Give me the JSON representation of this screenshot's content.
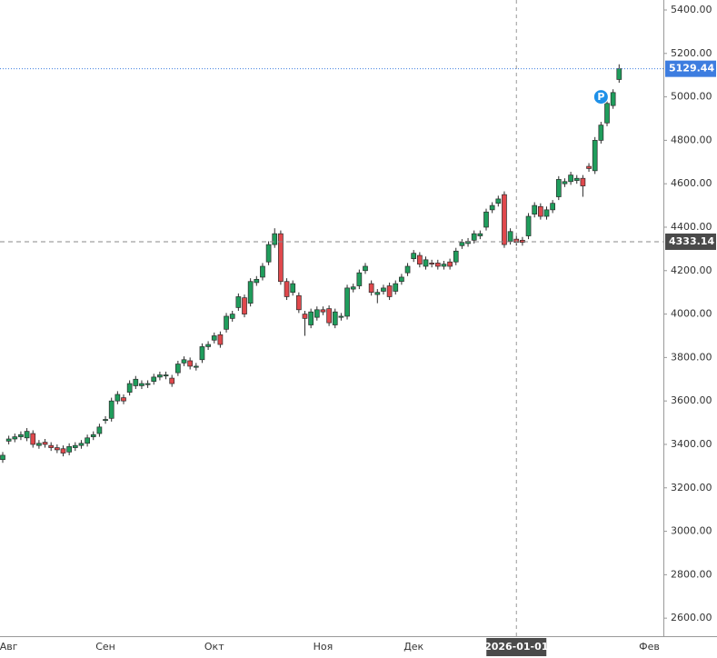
{
  "chart_data": {
    "type": "candlestick",
    "categories": [
      null,
      "Авг",
      null,
      null,
      null,
      null,
      null,
      null,
      null,
      null,
      null,
      null,
      null,
      null,
      null,
      null,
      null,
      "Сен",
      null,
      null,
      null,
      null,
      null,
      null,
      null,
      null,
      null,
      null,
      null,
      null,
      null,
      null,
      null,
      null,
      null,
      "Окт",
      null,
      null,
      null,
      null,
      null,
      null,
      null,
      null,
      null,
      null,
      null,
      null,
      null,
      null,
      null,
      null,
      null,
      "Ноя",
      null,
      null,
      null,
      null,
      null,
      null,
      null,
      null,
      null,
      null,
      null,
      null,
      null,
      null,
      "Дек",
      null,
      null,
      null,
      null,
      null,
      null,
      null,
      null,
      null,
      null,
      null,
      null,
      null,
      null,
      null,
      null,
      "2026-01-01",
      null,
      null,
      null,
      null,
      null,
      null,
      null,
      null,
      null,
      null,
      null,
      null,
      null,
      null,
      null,
      null,
      null,
      null,
      null,
      null,
      null,
      "Фев"
    ],
    "open": [
      3330,
      3415,
      3425,
      3435,
      3430,
      3450,
      3395,
      3410,
      3395,
      3385,
      3380,
      3365,
      3385,
      3395,
      3405,
      3435,
      3450,
      3510,
      3520,
      3600,
      3615,
      3640,
      3670,
      3670,
      3675,
      3690,
      3710,
      3715,
      3705,
      3730,
      3775,
      3785,
      3755,
      3790,
      3850,
      3880,
      3905,
      3930,
      3980,
      4030,
      4075,
      4050,
      4145,
      4170,
      4240,
      4320,
      4370,
      4150,
      4100,
      4085,
      4000,
      3950,
      3985,
      4020,
      4025,
      3950,
      3985,
      3990,
      4115,
      4130,
      4200,
      4140,
      4090,
      4105,
      4130,
      4105,
      4150,
      4190,
      4255,
      4270,
      4220,
      4235,
      4235,
      4220,
      4240,
      4240,
      4315,
      4325,
      4340,
      4360,
      4400,
      4480,
      4510,
      4550,
      4335,
      4345,
      4340,
      4360,
      4460,
      4495,
      4450,
      4480,
      4540,
      4600,
      4610,
      4615,
      4625,
      4680,
      4660,
      4800,
      4880,
      4960,
      5080,
      null,
      null,
      null,
      null,
      null
    ],
    "high": [
      3365,
      3440,
      3450,
      3460,
      3475,
      3465,
      3420,
      3425,
      3410,
      3400,
      3395,
      3405,
      3410,
      3420,
      3445,
      3460,
      3495,
      3530,
      3615,
      3645,
      3630,
      3695,
      3715,
      3695,
      3695,
      3725,
      3735,
      3735,
      3720,
      3785,
      3805,
      3800,
      3775,
      3865,
      3875,
      3915,
      3920,
      4005,
      4015,
      4095,
      4090,
      4165,
      4175,
      4235,
      4335,
      4395,
      4385,
      4165,
      4155,
      4100,
      4015,
      4025,
      4035,
      4035,
      4040,
      4025,
      4005,
      4135,
      4140,
      4205,
      4235,
      4155,
      4115,
      4135,
      4145,
      4155,
      4185,
      4235,
      4295,
      4285,
      4265,
      4250,
      4250,
      4245,
      4255,
      4305,
      4345,
      4350,
      4385,
      4385,
      4485,
      4515,
      4545,
      4565,
      4395,
      4360,
      4355,
      4465,
      4515,
      4510,
      4495,
      4525,
      4635,
      4625,
      4655,
      4640,
      4640,
      4695,
      4815,
      4885,
      4985,
      5035,
      5150,
      null,
      null,
      null,
      null,
      null
    ],
    "low": [
      3315,
      3400,
      3410,
      3420,
      3415,
      3385,
      3380,
      3385,
      3370,
      3360,
      3345,
      3350,
      3370,
      3380,
      3390,
      3420,
      3435,
      3495,
      3505,
      3585,
      3585,
      3625,
      3655,
      3655,
      3660,
      3675,
      3695,
      3700,
      3665,
      3715,
      3760,
      3745,
      3740,
      3775,
      3835,
      3865,
      3845,
      3915,
      3965,
      4015,
      3985,
      4035,
      4130,
      4155,
      4225,
      4305,
      4135,
      4065,
      4085,
      4005,
      3900,
      3935,
      3970,
      3995,
      3945,
      3935,
      3970,
      3975,
      4100,
      4115,
      4185,
      4085,
      4050,
      4090,
      4065,
      4090,
      4135,
      4175,
      4240,
      4215,
      4205,
      4215,
      4205,
      4205,
      4205,
      4225,
      4300,
      4310,
      4325,
      4345,
      4385,
      4465,
      4495,
      4305,
      4320,
      4315,
      4315,
      4345,
      4445,
      4435,
      4435,
      4465,
      4525,
      4585,
      4595,
      4600,
      4540,
      4655,
      4645,
      4785,
      4865,
      4945,
      5065,
      null,
      null,
      null,
      null,
      null
    ],
    "close": [
      3350,
      3425,
      3435,
      3445,
      3460,
      3400,
      3405,
      3400,
      3385,
      3375,
      3360,
      3390,
      3395,
      3405,
      3430,
      3445,
      3480,
      3515,
      3600,
      3630,
      3600,
      3680,
      3700,
      3680,
      3680,
      3710,
      3720,
      3720,
      3680,
      3770,
      3790,
      3760,
      3760,
      3850,
      3860,
      3900,
      3860,
      3990,
      4000,
      4080,
      4000,
      4150,
      4160,
      4220,
      4320,
      4370,
      4150,
      4080,
      4140,
      4020,
      3980,
      4010,
      4020,
      4010,
      3960,
      4010,
      3990,
      4120,
      4125,
      4190,
      4220,
      4100,
      4100,
      4120,
      4080,
      4140,
      4170,
      4220,
      4280,
      4230,
      4250,
      4230,
      4220,
      4230,
      4220,
      4290,
      4330,
      4335,
      4370,
      4370,
      4470,
      4500,
      4530,
      4320,
      4380,
      4330,
      4330,
      4450,
      4500,
      4450,
      4480,
      4510,
      4620,
      4610,
      4640,
      4625,
      4590,
      4670,
      4800,
      4870,
      4970,
      5020,
      5129.44,
      null,
      null,
      null,
      null,
      null
    ],
    "up_color": "#1f9d5c",
    "down_color": "#e0484c",
    "ylim": [
      2517,
      5446
    ],
    "yticks": [
      {
        "value": 2600,
        "label": "2600.00"
      },
      {
        "value": 2800,
        "label": "2800.00"
      },
      {
        "value": 3000,
        "label": "3000.00"
      },
      {
        "value": 3200,
        "label": "3200.00"
      },
      {
        "value": 3400,
        "label": "3400.00"
      },
      {
        "value": 3600,
        "label": "3600.00"
      },
      {
        "value": 3800,
        "label": "3800.00"
      },
      {
        "value": 4000,
        "label": "4000.00"
      },
      {
        "value": 4200,
        "label": "4200.00"
      },
      {
        "value": 4400,
        "label": "4400.00"
      },
      {
        "value": 4600,
        "label": "4600.00"
      },
      {
        "value": 4800,
        "label": "4800.00"
      },
      {
        "value": 5000,
        "label": "5000.00"
      },
      {
        "value": 5200,
        "label": "5200.00"
      },
      {
        "value": 5400,
        "label": "5400.00"
      }
    ],
    "last_price": 5129.44,
    "last_price_color": "#3d7de0",
    "crosshair_y": 4333.14,
    "annotations": [
      {
        "label": "P",
        "value": 5000,
        "color": "#1e90e8"
      }
    ],
    "grid": false
  }
}
